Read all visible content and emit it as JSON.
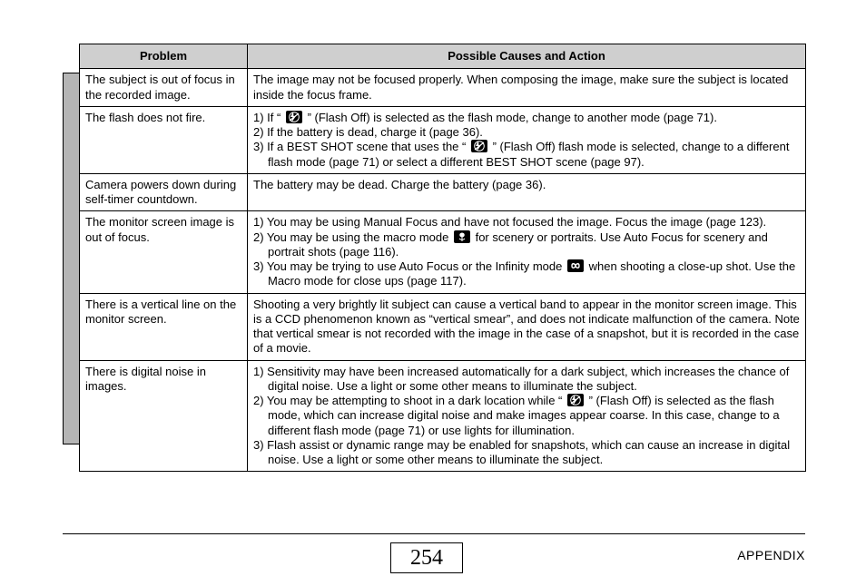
{
  "headers": {
    "problem": "Problem",
    "causes": "Possible Causes and Action"
  },
  "rows": [
    {
      "problem": "The subject is out of focus in the recorded image.",
      "cause_plain": "The image may not be focused properly. When composing the image, make sure the subject is located inside the focus frame."
    },
    {
      "problem": "The flash does not fire.",
      "cause_list": [
        {
          "pre": "1) If “ ",
          "icon": "flash-off-icon",
          "post": " ” (Flash Off) is selected as the flash mode, change to another mode (page 71)."
        },
        {
          "text": "2) If the battery is dead, charge it (page 36)."
        },
        {
          "pre": "3) If a BEST SHOT scene that uses the “ ",
          "icon": "flash-off-icon",
          "post": " ” (Flash Off) flash mode is selected, change to a different flash mode (page 71) or select a different BEST SHOT scene (page 97)."
        }
      ]
    },
    {
      "problem": "Camera powers down during self-timer countdown.",
      "cause_plain": "The battery may be dead. Charge the battery (page 36)."
    },
    {
      "problem": "The monitor screen image is out of focus.",
      "cause_list": [
        {
          "text": "1) You may be using Manual Focus and have not focused the image. Focus the image (page 123)."
        },
        {
          "pre": "2) You may be using the macro mode ",
          "icon": "macro-icon",
          "post": " for scenery or portraits. Use Auto Focus for scenery and portrait shots (page 116)."
        },
        {
          "pre": "3) You may be trying to use Auto Focus or the Infinity mode ",
          "icon": "infinity-icon",
          "post": " when shooting a close-up shot. Use the Macro mode for close ups (page 117)."
        }
      ]
    },
    {
      "problem": "There is a vertical line on the monitor screen.",
      "cause_plain": "Shooting a very brightly lit subject can cause a vertical band to appear in the monitor screen image. This is a CCD phenomenon known as “vertical smear”, and does not indicate malfunction of the camera. Note that vertical smear is not recorded with the image in the case of a snapshot, but it is recorded in the case of a movie."
    },
    {
      "problem": "There is digital noise in images.",
      "cause_list": [
        {
          "text": "1) Sensitivity may have been increased automatically for a dark subject, which increases the chance of digital noise. Use a light or some other means to illuminate the subject."
        },
        {
          "pre": "2) You may be attempting to shoot in a dark location while “ ",
          "icon": "flash-off-icon",
          "post": " ” (Flash Off) is selected as the flash mode, which can increase digital noise and make images appear coarse. In this case, change to a different flash mode (page 71) or use lights for illumination."
        },
        {
          "text": "3) Flash assist or dynamic range may be enabled for snapshots, which can cause an increase in digital noise. Use a light or some other means to illuminate the subject."
        }
      ]
    }
  ],
  "page_number": "254",
  "section": "APPENDIX",
  "icons": {
    "flash-off-icon": "<svg width='16' height='12' viewBox='0 0 16 12'><path d='M7 0 L4 6 L6.5 6 L5 12 L10 5 L7.5 5 Z' fill='#fff'/><circle cx='8' cy='6' r='5.3' fill='none' stroke='#fff' stroke-width='1'/><line x1='3' y1='10' x2='13' y2='2' stroke='#fff' stroke-width='1.3'/></svg>",
    "macro-icon": "<svg width='16' height='12' viewBox='0 0 16 12'><path d='M8 2 C5 2 5 6 8 6 C11 6 11 2 8 2 Z M8 6 L8 11 M5 8 C5 8 7 10 8 9 M11 8 C11 8 9 10 8 9' fill='#fff' stroke='#fff' stroke-width='1'/></svg>",
    "infinity-icon": "<svg width='16' height='12' viewBox='0 0 16 12'><path d='M4 6 C4 3 7 3 8 6 C9 9 12 9 12 6 C12 3 9 3 8 6 C7 9 4 9 4 6 Z' fill='none' stroke='#fff' stroke-width='1.4'/></svg>"
  }
}
